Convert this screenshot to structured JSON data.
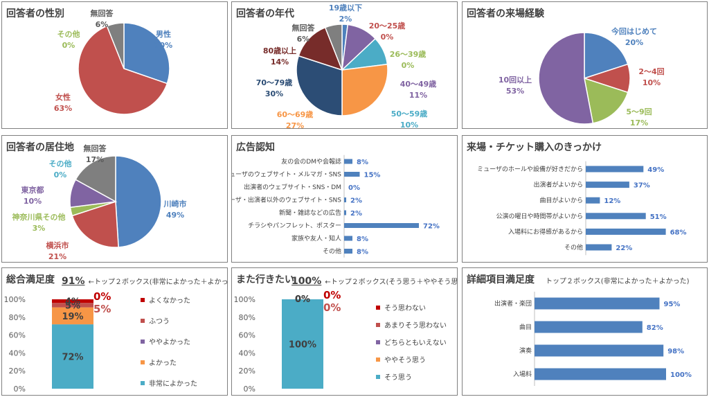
{
  "chart_data": [
    {
      "type": "pie",
      "title": "回答者の性別",
      "slices": [
        {
          "label": "男性",
          "value": 30,
          "pct": "30%",
          "color": "#4f81bd"
        },
        {
          "label": "女性",
          "value": 63,
          "pct": "63%",
          "color": "#c0504d"
        },
        {
          "label": "その他",
          "value": 0,
          "pct": "0%",
          "color": "#9bbb59"
        },
        {
          "label": "無回答",
          "value": 6,
          "pct": "6%",
          "color": "#7f7f7f"
        }
      ]
    },
    {
      "type": "pie",
      "title": "回答者の年代",
      "slices": [
        {
          "label": "19歳以下",
          "value": 2,
          "pct": "2%",
          "color": "#4f81bd"
        },
        {
          "label": "20～25歳",
          "value": 0,
          "pct": "0%",
          "color": "#c0504d"
        },
        {
          "label": "26～39歳",
          "value": 0,
          "pct": "0%",
          "color": "#9bbb59"
        },
        {
          "label": "40～49歳",
          "value": 11,
          "pct": "11%",
          "color": "#8064a2"
        },
        {
          "label": "50～59歳",
          "value": 10,
          "pct": "10%",
          "color": "#4bacc6"
        },
        {
          "label": "60～69歳",
          "value": 27,
          "pct": "27%",
          "color": "#f79646"
        },
        {
          "label": "70～79歳",
          "value": 30,
          "pct": "30%",
          "color": "#2c4d75"
        },
        {
          "label": "80歳以上",
          "value": 14,
          "pct": "14%",
          "color": "#772c2a"
        },
        {
          "label": "無回答",
          "value": 6,
          "pct": "6%",
          "color": "#7f7f7f"
        }
      ]
    },
    {
      "type": "pie",
      "title": "回答者の来場経験",
      "slices": [
        {
          "label": "今回はじめて",
          "value": 20,
          "pct": "20%",
          "color": "#4f81bd"
        },
        {
          "label": "2～4回",
          "value": 10,
          "pct": "10%",
          "color": "#c0504d"
        },
        {
          "label": "5～9回",
          "value": 17,
          "pct": "17%",
          "color": "#9bbb59"
        },
        {
          "label": "10回以上",
          "value": 53,
          "pct": "53%",
          "color": "#8064a2"
        }
      ]
    },
    {
      "type": "pie",
      "title": "回答者の居住地",
      "slices": [
        {
          "label": "川崎市",
          "value": 49,
          "pct": "49%",
          "color": "#4f81bd"
        },
        {
          "label": "横浜市",
          "value": 21,
          "pct": "21%",
          "color": "#c0504d"
        },
        {
          "label": "神奈川県その他",
          "value": 3,
          "pct": "3%",
          "color": "#9bbb59"
        },
        {
          "label": "東京都",
          "value": 10,
          "pct": "10%",
          "color": "#8064a2"
        },
        {
          "label": "その他",
          "value": 0,
          "pct": "0%",
          "color": "#4bacc6"
        },
        {
          "label": "無回答",
          "value": 17,
          "pct": "17%",
          "color": "#7f7f7f"
        }
      ]
    },
    {
      "type": "bar",
      "orientation": "horizontal",
      "title": "広告認知",
      "categories": [
        "友の会のDMや会報誌",
        "ミューザのウェブサイト・メルマガ・SNS",
        "出演者のウェブサイト・SNS・DM",
        "ミューザ・出演者以外のウェブサイト・SNS",
        "新聞・雑誌などの広告",
        "チラシやパンフレット、ポスター",
        "家族や友人・知人",
        "その他"
      ],
      "values": [
        8,
        15,
        0,
        2,
        2,
        72,
        8,
        8
      ],
      "labels": [
        "8%",
        "15%",
        "0%",
        "2%",
        "2%",
        "72%",
        "8%",
        "8%"
      ],
      "color": "#4f81bd"
    },
    {
      "type": "bar",
      "orientation": "horizontal",
      "title": "来場・チケット購入のきっかけ",
      "categories": [
        "ミューザのホールや設備が好きだから",
        "出演者がよいから",
        "曲目がよいから",
        "公演の曜日や時間帯がよいから",
        "入場料にお得感があるから",
        "その他"
      ],
      "values": [
        49,
        37,
        12,
        51,
        68,
        22
      ],
      "labels": [
        "49%",
        "37%",
        "12%",
        "51%",
        "68%",
        "22%"
      ],
      "color": "#4f81bd"
    },
    {
      "type": "bar",
      "stacked": true,
      "title": "総合満足度",
      "summary_value": "91%",
      "summary_note": "←トップ２ボックス(非常によかった＋よかった)",
      "yticks": [
        "0%",
        "20%",
        "40%",
        "60%",
        "80%",
        "100%"
      ],
      "ylim": [
        0,
        100
      ],
      "series": [
        {
          "name": "非常によかった",
          "value": 72,
          "label": "72%",
          "color": "#4bacc6"
        },
        {
          "name": "よかった",
          "value": 19,
          "label": "19%",
          "color": "#f79646"
        },
        {
          "name": "ややよかった",
          "value": 0,
          "label": "",
          "color": "#8064a2"
        },
        {
          "name": "ふつう",
          "value": 5,
          "label": "5%",
          "color": "#c0504d"
        },
        {
          "name": "よくなかった",
          "value": 4,
          "label": "4%",
          "color": "#c00000"
        }
      ],
      "outside_labels": [
        "0%",
        "5%"
      ]
    },
    {
      "type": "bar",
      "stacked": true,
      "title": "また行きたい",
      "summary_value": "100%",
      "summary_note": "←トップ２ボックス(そう思う＋ややそう思う)",
      "yticks": [
        "0%",
        "20%",
        "40%",
        "60%",
        "80%",
        "100%"
      ],
      "ylim": [
        0,
        100
      ],
      "series": [
        {
          "name": "そう思う",
          "value": 100,
          "label": "100%",
          "color": "#4bacc6"
        },
        {
          "name": "ややそう思う",
          "value": 0,
          "label": "0%",
          "color": "#f79646"
        },
        {
          "name": "どちらともいえない",
          "value": 0,
          "label": "",
          "color": "#8064a2"
        },
        {
          "name": "あまりそう思わない",
          "value": 0,
          "label": "",
          "color": "#c0504d"
        },
        {
          "name": "そう思わない",
          "value": 0,
          "label": "0%",
          "color": "#c00000"
        }
      ],
      "outside_labels": [
        "0%",
        "0%"
      ]
    },
    {
      "type": "bar",
      "orientation": "horizontal",
      "title": "詳細項目満足度",
      "subtitle": "トップ２ボックス(非常によかった＋よかった)",
      "categories": [
        "出演者・楽団",
        "曲目",
        "演奏",
        "入場料"
      ],
      "values": [
        95,
        82,
        98,
        100
      ],
      "labels": [
        "95%",
        "82%",
        "98%",
        "100%"
      ],
      "color": "#4f81bd"
    }
  ]
}
